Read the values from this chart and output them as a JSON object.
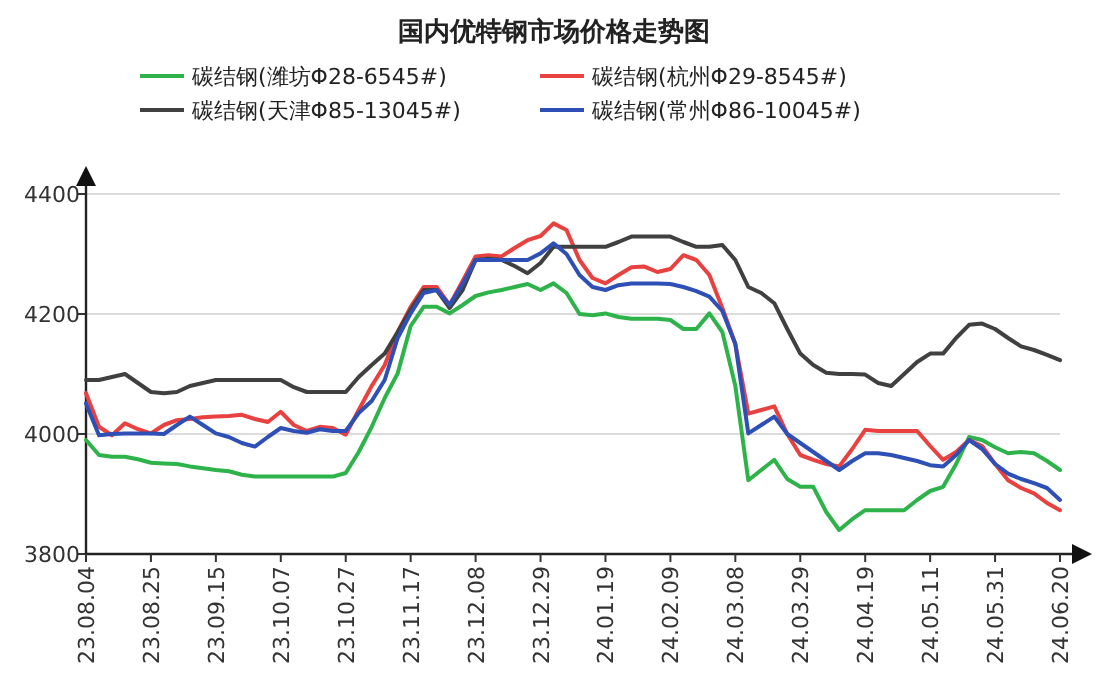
{
  "chart_data": {
    "type": "line",
    "title": "国内优特钢市场价格走势图",
    "categories": [
      "23.08.04",
      null,
      null,
      null,
      null,
      "23.08.25",
      null,
      null,
      null,
      null,
      "23.09.15",
      null,
      null,
      null,
      null,
      "23.10.07",
      null,
      null,
      null,
      null,
      "23.10.27",
      null,
      null,
      null,
      null,
      "23.11.17",
      null,
      null,
      null,
      null,
      "23.12.08",
      null,
      null,
      null,
      null,
      "23.12.29",
      null,
      null,
      null,
      null,
      "24.01.19",
      null,
      null,
      null,
      null,
      "24.02.09",
      null,
      null,
      null,
      null,
      "24.03.08",
      null,
      null,
      null,
      null,
      "24.03.29",
      null,
      null,
      null,
      null,
      "24.04.19",
      null,
      null,
      null,
      null,
      "24.05.11",
      null,
      null,
      null,
      null,
      "24.05.31",
      null,
      null,
      null,
      null,
      "24.06.20"
    ],
    "series": [
      {
        "name": "碳结钢(潍坊Φ28-6545#)",
        "color": "#2db34a",
        "values": [
          3990,
          3965,
          3962,
          3962,
          3958,
          3952,
          3951,
          3950,
          3946,
          3943,
          3940,
          3938,
          3932,
          3929,
          3929,
          3929,
          3929,
          3929,
          3929,
          3929,
          3935,
          3970,
          4012,
          4060,
          4101,
          4180,
          4212,
          4212,
          4201,
          4215,
          4230,
          4236,
          4240,
          4245,
          4250,
          4240,
          4251,
          4235,
          4200,
          4198,
          4201,
          4195,
          4192,
          4192,
          4192,
          4190,
          4175,
          4175,
          4201,
          4170,
          4080,
          3923,
          3940,
          3957,
          3925,
          3912,
          3912,
          3870,
          3840,
          3858,
          3873,
          3873,
          3873,
          3873,
          3890,
          3905,
          3912,
          3950,
          3995,
          3990,
          3978,
          3968,
          3970,
          3968,
          3955,
          3940
        ]
      },
      {
        "name": "碳结钢(杭州Φ29-8545#)",
        "color": "#e8413f",
        "values": [
          4068,
          4012,
          3998,
          4018,
          4008,
          4001,
          4015,
          4023,
          4025,
          4028,
          4029,
          4030,
          4032,
          4025,
          4020,
          4037,
          4015,
          4005,
          4012,
          4010,
          3999,
          4040,
          4080,
          4115,
          4170,
          4212,
          4245,
          4245,
          4215,
          4255,
          4296,
          4298,
          4296,
          4310,
          4323,
          4330,
          4351,
          4340,
          4290,
          4260,
          4251,
          4265,
          4278,
          4279,
          4270,
          4275,
          4298,
          4290,
          4265,
          4210,
          4150,
          4034,
          4040,
          4046,
          4000,
          3965,
          3957,
          3950,
          3946,
          3975,
          4007,
          4005,
          4005,
          4005,
          4005,
          3980,
          3957,
          3970,
          3990,
          3980,
          3950,
          3923,
          3910,
          3901,
          3885,
          3873
        ]
      },
      {
        "name": "碳结钢(天津Φ85-13045#)",
        "color": "#404040",
        "values": [
          4090,
          4090,
          4095,
          4100,
          4085,
          4070,
          4068,
          4070,
          4080,
          4085,
          4090,
          4090,
          4090,
          4090,
          4090,
          4090,
          4078,
          4070,
          4070,
          4070,
          4070,
          4095,
          4115,
          4134,
          4170,
          4207,
          4240,
          4240,
          4210,
          4240,
          4290,
          4292,
          4290,
          4280,
          4268,
          4285,
          4312,
          4312,
          4312,
          4312,
          4312,
          4320,
          4329,
          4329,
          4329,
          4329,
          4320,
          4312,
          4312,
          4315,
          4290,
          4245,
          4235,
          4218,
          4175,
          4134,
          4115,
          4102,
          4100,
          4100,
          4099,
          4085,
          4080,
          4100,
          4120,
          4134,
          4134,
          4160,
          4182,
          4184,
          4175,
          4160,
          4146,
          4140,
          4132,
          4123
        ]
      },
      {
        "name": "碳结钢(常州Φ86-10045#)",
        "color": "#2e4fb5",
        "values": [
          4051,
          3998,
          4000,
          4001,
          4001,
          4001,
          4000,
          4015,
          4029,
          4015,
          4001,
          3995,
          3985,
          3979,
          3995,
          4010,
          4005,
          4002,
          4008,
          4005,
          4005,
          4035,
          4055,
          4090,
          4160,
          4201,
          4235,
          4240,
          4215,
          4250,
          4290,
          4290,
          4290,
          4290,
          4290,
          4301,
          4318,
          4300,
          4265,
          4245,
          4240,
          4248,
          4251,
          4251,
          4251,
          4250,
          4245,
          4238,
          4229,
          4205,
          4150,
          4001,
          4015,
          4029,
          4000,
          3985,
          3970,
          3955,
          3940,
          3955,
          3968,
          3968,
          3965,
          3960,
          3955,
          3948,
          3946,
          3965,
          3990,
          3975,
          3950,
          3934,
          3925,
          3918,
          3910,
          3890
        ]
      }
    ],
    "ylim": [
      3800,
      4400
    ],
    "yticks": [
      3800,
      4000,
      4200,
      4400
    ],
    "grid": "y",
    "legend": "top"
  }
}
